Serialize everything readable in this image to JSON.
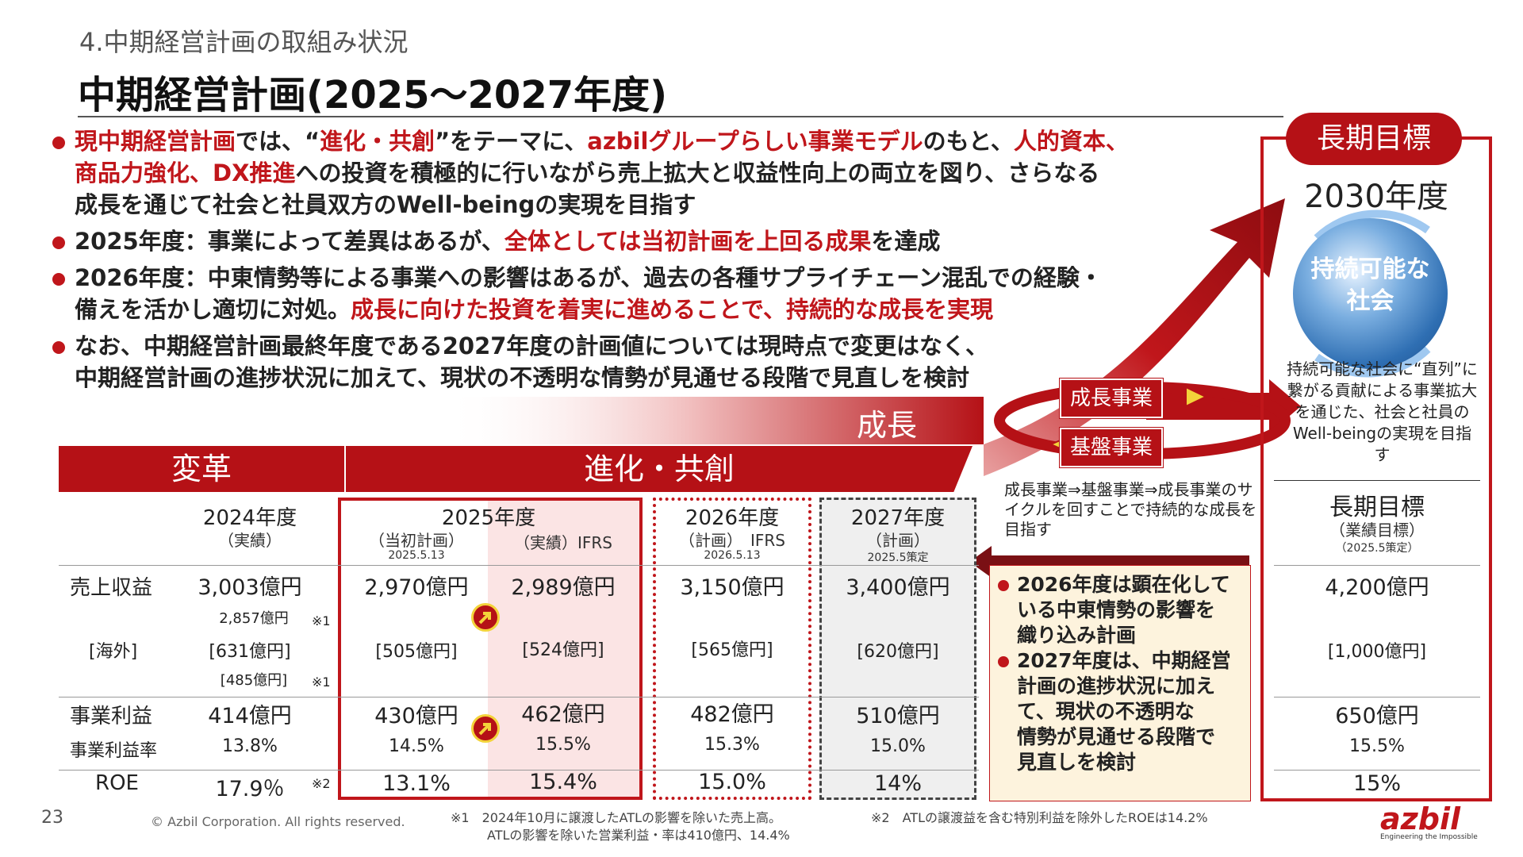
{
  "header": {
    "section": "4.中期経営計画の取組み状況",
    "title": "中期経営計画(2025〜2027年度)"
  },
  "bullets": [
    {
      "line1_a": "現中期経営計画",
      "line1_b": "では、“",
      "line1_c": "進化・共創",
      "line1_d": "”をテーマに、",
      "line1_e": "azbilグループらしい事業モデル",
      "line1_f": "のもと、",
      "line1_g": "人的資本、",
      "line2_a": "商品力強化、DX推進",
      "line2_b": "への投資を積極的に行いながら売上拡大と収益性向上の両立を図り、さらなる",
      "line3": "成長を通じて社会と社員双方のWell-beingの実現を目指す"
    },
    {
      "a": "2025年度：事業によって差異はあるが、",
      "b": "全体としては当初計画を上回る成果",
      "c": "を達成"
    },
    {
      "line1": "2026年度：中東情勢等による事業への影響はあるが、過去の各種サプライチェーン混乱での経験・",
      "line2_a": "備えを活かし適切に対処。",
      "line2_b": "成長に向けた投資を着実に進めることで、持続的な成長を実現"
    },
    {
      "line1": "なお、中期経営計画最終年度である2027年度の計画値については現時点で変更はなく、",
      "line2": "中期経営計画の進捗状況に加えて、現状の不透明な情勢が見通せる段階で見直しを検討"
    }
  ],
  "growth_label": "成長",
  "bands": {
    "reform": "変革",
    "evolution": "進化・共創"
  },
  "cycle": {
    "growth_biz": "成長事業",
    "base_biz": "基盤事業",
    "note": "成長事業⇒基盤事業⇒成長事業のサイクルを回すことで持続的な成長を目指す"
  },
  "long_term": {
    "pill": "長期目標",
    "year": "2030年度",
    "globe_text_1": "持続可能な",
    "globe_text_2": "社会",
    "note": "持続可能な社会に“直列”に繋がる貢献による事業拡大を通じた、社会と社員のWell-beingの実現を目指す"
  },
  "columns": {
    "y2024": {
      "title": "2024年度",
      "sub": "（実績）"
    },
    "y2025": {
      "title": "2025年度",
      "sub_plan": "（当初計画）",
      "sub_plan_date": "2025.5.13",
      "sub_actual": "（実績）IFRS"
    },
    "y2026": {
      "title": "2026年度",
      "sub": "（計画）　IFRS",
      "date": "2026.5.13"
    },
    "y2027": {
      "title": "2027年度",
      "sub": "（計画）",
      "date": "2025.5策定"
    },
    "long": {
      "title": "長期目標",
      "sub": "（業績目標）",
      "date": "（2025.5策定）"
    }
  },
  "rows": {
    "revenue": {
      "label": "売上収益",
      "y2024": "3,003億円",
      "y2024_adj": "2,857億円",
      "mark1": "※1",
      "plan2025": "2,970億円",
      "act2025": "2,989億円",
      "y2026": "3,150億円",
      "y2027": "3,400億円",
      "long": "4,200億円"
    },
    "overseas": {
      "label": "[海外]",
      "y2024": "[631億円]",
      "y2024_adj": "[485億円]",
      "mark1": "※1",
      "plan2025": "[505億円]",
      "act2025": "[524億円]",
      "y2026": "[565億円]",
      "y2027": "[620億円]",
      "long": "[1,000億円]"
    },
    "op_profit": {
      "label": "事業利益",
      "y2024": "414億円",
      "plan2025": "430億円",
      "act2025": "462億円",
      "y2026": "482億円",
      "y2027": "510億円",
      "long": "650億円"
    },
    "op_margin": {
      "label": "事業利益率",
      "y2024": "13.8%",
      "plan2025": "14.5%",
      "act2025": "15.5%",
      "y2026": "15.3%",
      "y2027": "15.0%",
      "long": "15.5%"
    },
    "roe": {
      "label": "ROE",
      "y2024": "17.9％",
      "mark2": "※2",
      "plan2025": "13.1%",
      "act2025": "15.4%",
      "y2026": "15.0%",
      "y2027": "14%",
      "long": "15%"
    }
  },
  "yellow_box": {
    "b1_l1": "2026年度は顕在化して",
    "b1_l2": "いる中東情勢の影響を",
    "b1_l3": "織り込み計画",
    "b2_l1": "2027年度は、中期経営",
    "b2_l2": "計画の進捗状況に加え",
    "b2_l3": "て、現状の不透明な",
    "b2_l4": "情勢が見通せる段階で",
    "b2_l5": "見直しを検討"
  },
  "footnotes": {
    "n1_l1": "※1　2024年10月に譲渡したATLの影響を除いた売上高。",
    "n1_l2": "ATLの影響を除いた営業利益・率は410億円、14.4%",
    "n2": "※2　ATLの譲渡益を含む特別利益を除外したROEは14.2%"
  },
  "footer": {
    "page": "23",
    "copyright": "© Azbil Corporation. All rights reserved.",
    "logo": "azbil",
    "logo_sub": "Engineering the Impossible"
  },
  "colors": {
    "brand_red": "#b51116",
    "accent_yellow": "#f3d33a",
    "pink_bg": "#fbe4e4"
  }
}
